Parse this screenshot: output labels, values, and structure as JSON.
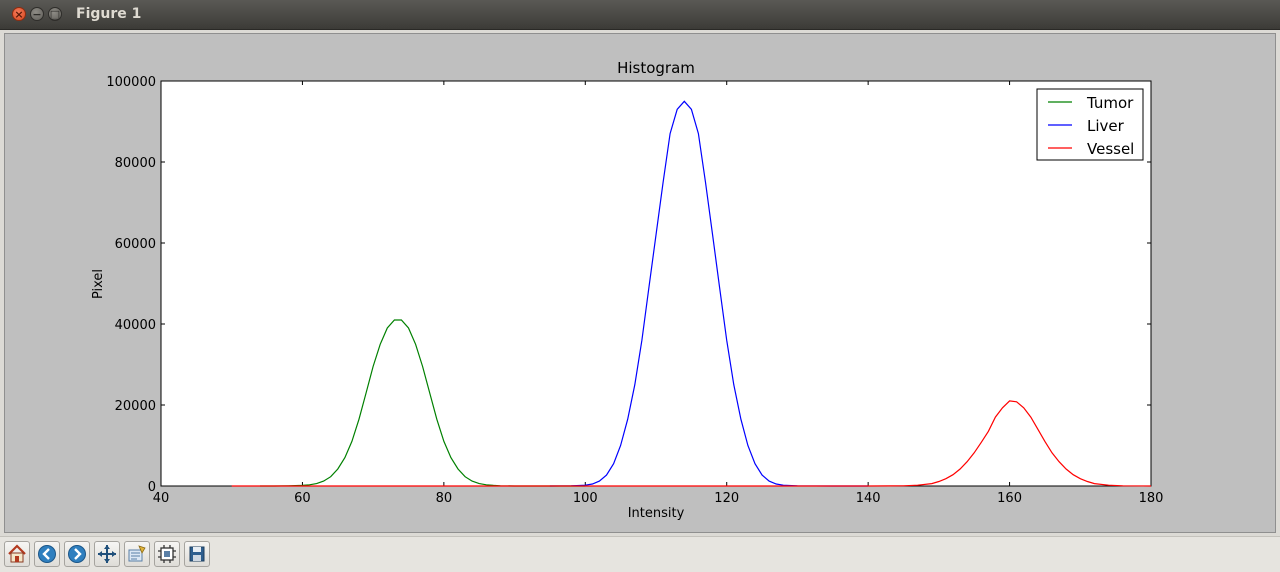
{
  "window": {
    "title": "Figure 1"
  },
  "toolbar": {
    "buttons": [
      {
        "icon": "home-icon"
      },
      {
        "icon": "back-icon"
      },
      {
        "icon": "forward-icon"
      },
      {
        "icon": "pan-icon"
      },
      {
        "icon": "zoom-icon"
      },
      {
        "icon": "subplots-icon"
      },
      {
        "icon": "save-icon"
      }
    ]
  },
  "chart_data": {
    "type": "line",
    "title": "Histogram",
    "xlabel": "Intensity",
    "ylabel": "Pixel",
    "xlim": [
      40,
      180
    ],
    "ylim": [
      0,
      100000
    ],
    "xticks": [
      40,
      60,
      80,
      100,
      120,
      140,
      160,
      180
    ],
    "yticks": [
      0,
      20000,
      40000,
      60000,
      80000,
      100000
    ],
    "xtick_labels": [
      "40",
      "60",
      "80",
      "100",
      "120",
      "140",
      "160",
      "180"
    ],
    "ytick_labels": [
      "0",
      "20000",
      "40000",
      "60000",
      "80000",
      "100000"
    ],
    "grid": false,
    "legend_position": "top-right",
    "series": [
      {
        "name": "Tumor",
        "color": "#008000",
        "x": [
          54,
          56,
          58,
          60,
          61,
          62,
          63,
          64,
          65,
          66,
          67,
          68,
          69,
          70,
          71,
          72,
          73,
          74,
          75,
          76,
          77,
          78,
          79,
          80,
          81,
          82,
          83,
          84,
          85,
          86,
          87,
          88,
          90,
          92,
          95,
          100
        ],
        "y": [
          0,
          0,
          50,
          150,
          300,
          600,
          1200,
          2300,
          4200,
          7000,
          11000,
          16500,
          23000,
          29500,
          35000,
          39000,
          41000,
          41000,
          39000,
          35000,
          29500,
          23000,
          16500,
          11000,
          7000,
          4200,
          2300,
          1200,
          600,
          300,
          150,
          50,
          0,
          0,
          0,
          0
        ]
      },
      {
        "name": "Liver",
        "color": "#0000ff",
        "x": [
          95,
          98,
          100,
          101,
          102,
          103,
          104,
          105,
          106,
          107,
          108,
          109,
          110,
          111,
          112,
          113,
          114,
          115,
          116,
          117,
          118,
          119,
          120,
          121,
          122,
          123,
          124,
          125,
          126,
          127,
          128,
          130,
          135,
          140
        ],
        "y": [
          0,
          50,
          200,
          500,
          1200,
          2700,
          5500,
          10000,
          16500,
          25000,
          36000,
          49000,
          62000,
          75000,
          87000,
          93000,
          95000,
          93000,
          87000,
          75000,
          62000,
          49000,
          36000,
          25000,
          16500,
          10000,
          5500,
          2700,
          1200,
          500,
          200,
          50,
          0,
          0
        ]
      },
      {
        "name": "Vessel",
        "color": "#ff0000",
        "x": [
          50,
          100,
          140,
          145,
          147,
          149,
          150,
          151,
          152,
          153,
          154,
          155,
          156,
          157,
          158,
          159,
          160,
          161,
          162,
          163,
          164,
          165,
          166,
          167,
          168,
          169,
          170,
          171,
          172,
          174,
          176,
          180
        ],
        "y": [
          0,
          0,
          0,
          50,
          200,
          600,
          1100,
          1800,
          2800,
          4200,
          6000,
          8200,
          10800,
          13500,
          17000,
          19300,
          21000,
          20800,
          19300,
          17000,
          14000,
          11000,
          8200,
          6000,
          4200,
          2800,
          1800,
          1100,
          600,
          200,
          50,
          0
        ]
      }
    ]
  }
}
